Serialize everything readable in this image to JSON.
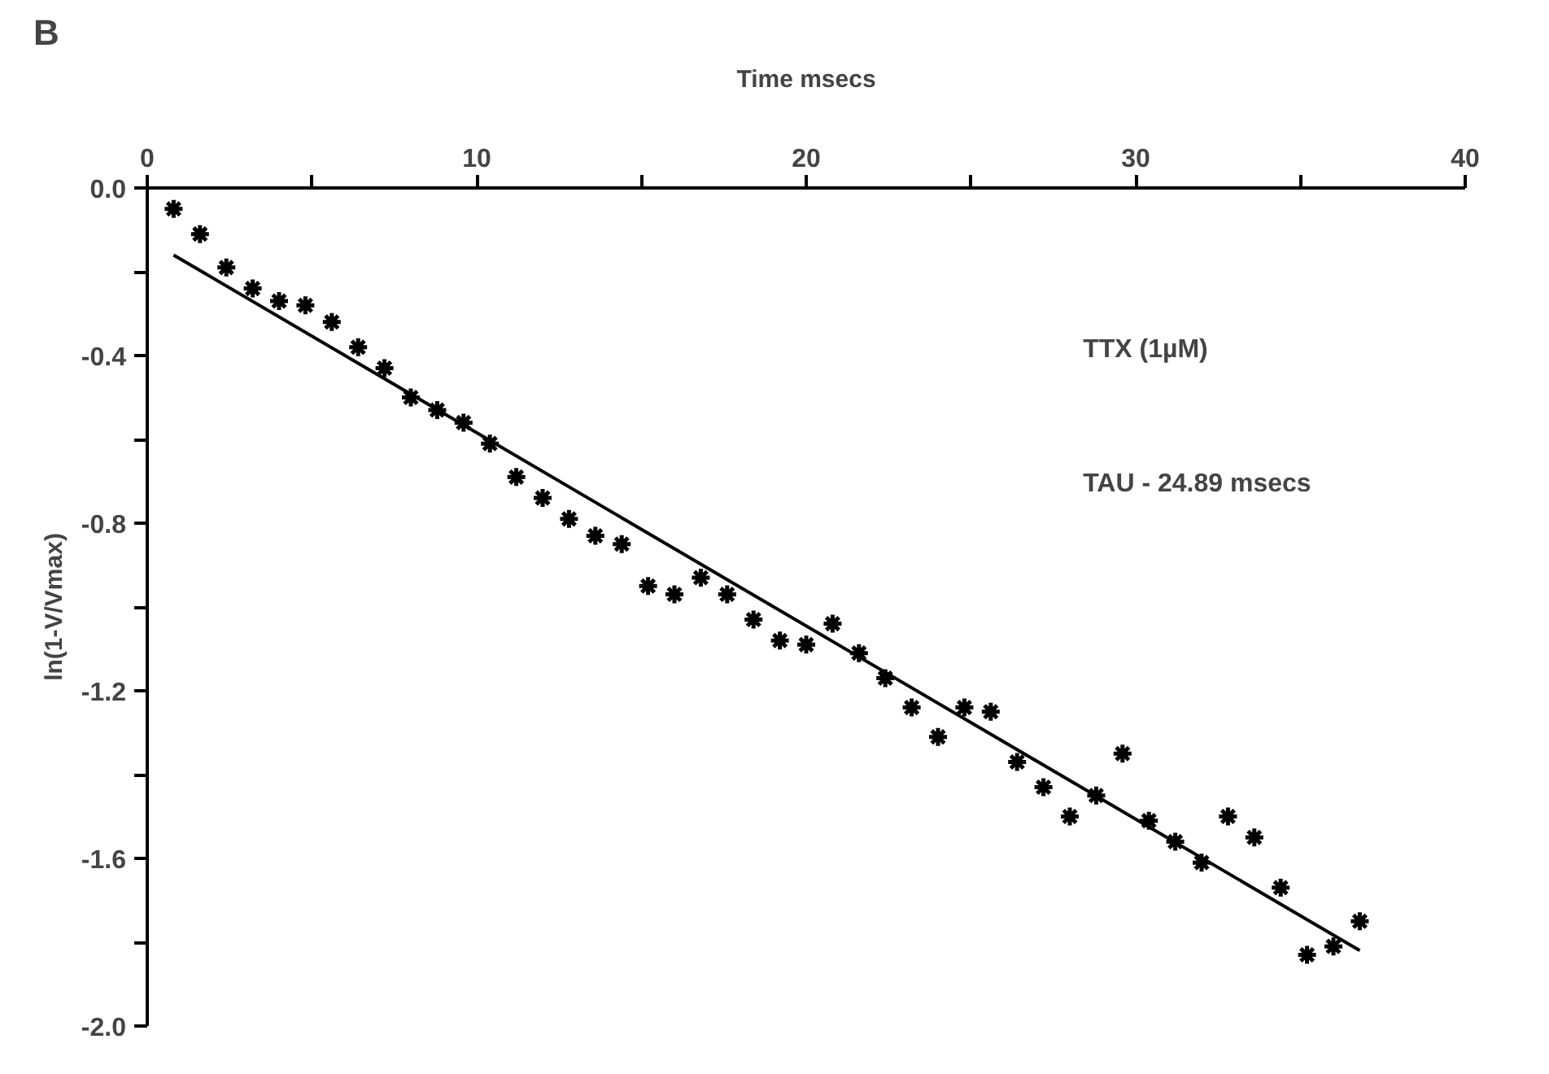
{
  "chart_data": {
    "type": "scatter",
    "title": "B",
    "xlabel": "Time msecs",
    "ylabel": "ln(1-V/Vmax)",
    "xlim": [
      0,
      40
    ],
    "xticks": [
      0,
      {
        "value": 5,
        "label": null
      },
      10,
      {
        "value": 15,
        "label": null
      },
      20,
      {
        "value": 25,
        "label": null
      },
      30,
      {
        "value": 35,
        "label": null
      },
      40
    ],
    "ylim": [
      -2.0,
      0.0
    ],
    "yticks": [
      {
        "value": 0,
        "label": "0.0"
      },
      {
        "value": -0.2,
        "label": null
      },
      {
        "value": -0.4,
        "label": "-0.4"
      },
      {
        "value": -0.6,
        "label": null
      },
      {
        "value": -0.8,
        "label": "-0.8"
      },
      {
        "value": -1.0,
        "label": null
      },
      {
        "value": -1.2,
        "label": "-1.2"
      },
      {
        "value": -1.4,
        "label": null
      },
      {
        "value": -1.6,
        "label": "-1.6"
      },
      {
        "value": -1.8,
        "label": null
      },
      {
        "value": -2.0,
        "label": "-2.0"
      }
    ],
    "grid": false,
    "marker": "cross",
    "annotations": [
      "TTX (1µM)",
      "TAU - 24.89 msecs"
    ],
    "series": [
      {
        "color": "#000000",
        "x": [
          0.8,
          1.6,
          2.4,
          3.2,
          4.0,
          4.8,
          5.6,
          6.4,
          7.2,
          8.0,
          8.8,
          9.6,
          10.4,
          11.2,
          12.0,
          12.8,
          13.6,
          14.4,
          15.2,
          16.0,
          16.8,
          17.6,
          18.4,
          19.2,
          20.0,
          20.8,
          21.6,
          22.4,
          23.2,
          24.0,
          24.8,
          25.6,
          26.4,
          27.2,
          28.0,
          28.8,
          29.6,
          30.4,
          31.2,
          32.0,
          32.8,
          33.6,
          34.4,
          35.2,
          36.0,
          36.8
        ],
        "values": [
          -0.05,
          -0.11,
          -0.19,
          -0.24,
          -0.27,
          -0.28,
          -0.32,
          -0.38,
          -0.43,
          -0.5,
          -0.53,
          -0.56,
          -0.61,
          -0.69,
          -0.74,
          -0.79,
          -0.83,
          -0.85,
          -0.95,
          -0.97,
          -0.93,
          -0.97,
          -1.03,
          -1.08,
          -1.09,
          -1.04,
          -1.11,
          -1.17,
          -1.24,
          -1.31,
          -1.24,
          -1.25,
          -1.37,
          -1.43,
          -1.5,
          -1.45,
          -1.35,
          -1.51,
          -1.56,
          -1.61,
          -1.5,
          -1.55,
          -1.67,
          -1.83,
          -1.81,
          -1.75
        ]
      },
      {
        "type": "line",
        "color": "#000000",
        "line_style": "solid",
        "marker": "none",
        "x": [
          0.8,
          36.8
        ],
        "values": [
          -0.16,
          -1.82
        ]
      }
    ]
  }
}
